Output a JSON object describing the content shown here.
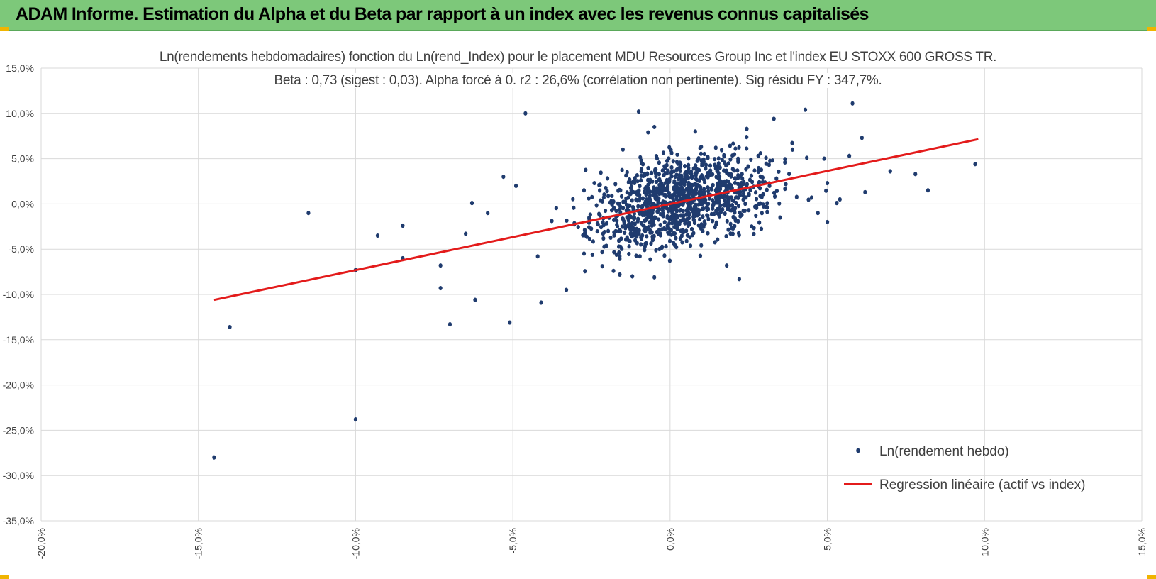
{
  "header": {
    "title": "ADAM Informe. Estimation du Alpha et du Beta par rapport à un index avec les revenus connus capitalisés"
  },
  "colors": {
    "banner": "#7dc87a",
    "points": "#1f3b6e",
    "regression": "#e31b1b",
    "grid": "#d9d9d9",
    "axis_text": "#404040"
  },
  "chart_data": {
    "type": "scatter",
    "title": "Ln(rendements hebdomadaires) fonction du Ln(rend_Index) pour le placement MDU Resources Group Inc et l'index EU STOXX 600 GROSS TR.",
    "subtitle": "Beta : 0,73 (sigest : 0,03). Alpha forcé à 0. r2 : 26,6% (corrélation non pertinente). Sig résidu FY : 347,7%.",
    "xlim": [
      -20,
      15
    ],
    "ylim": [
      -35,
      15
    ],
    "x_ticks": [
      -20,
      -15,
      -10,
      -5,
      0,
      5,
      10,
      15
    ],
    "y_ticks": [
      15,
      10,
      5,
      0,
      -5,
      -10,
      -15,
      -20,
      -25,
      -30,
      -35
    ],
    "x_tick_labels": [
      "-20,0%",
      "-15,0%",
      "-10,0%",
      "-5,0%",
      "0,0%",
      "5,0%",
      "10,0%",
      "15,0%"
    ],
    "y_tick_labels": [
      "15,0%",
      "10,0%",
      "5,0%",
      "0,0%",
      "-5,0%",
      "-10,0%",
      "-15,0%",
      "-20,0%",
      "-25,0%",
      "-30,0%",
      "-35,0%"
    ],
    "grid": true,
    "legend_position": "bottom-right",
    "series": [
      {
        "name": "Ln(rendement hebdo)",
        "kind": "scatter",
        "outliers": [
          [
            -14.5,
            -28.0
          ],
          [
            -14.0,
            -13.6
          ],
          [
            -11.5,
            -1.0
          ],
          [
            -10.0,
            -23.8
          ],
          [
            -10.0,
            -7.3
          ],
          [
            -9.3,
            -3.5
          ],
          [
            -8.5,
            -2.4
          ],
          [
            -8.5,
            -6.0
          ],
          [
            -7.3,
            -6.8
          ],
          [
            -7.3,
            -9.3
          ],
          [
            -7.0,
            -13.3
          ],
          [
            -6.5,
            -3.3
          ],
          [
            -6.3,
            0.1
          ],
          [
            -6.2,
            -10.6
          ],
          [
            -5.8,
            -1.0
          ],
          [
            -5.3,
            3.0
          ],
          [
            -5.1,
            -13.1
          ],
          [
            -4.9,
            2.0
          ],
          [
            -4.6,
            10.0
          ],
          [
            -4.1,
            -10.9
          ],
          [
            -3.3,
            -9.5
          ],
          [
            -1.8,
            -7.4
          ],
          [
            -1.6,
            -7.8
          ],
          [
            -1.2,
            -8.0
          ],
          [
            -0.5,
            -8.1
          ],
          [
            -1.0,
            10.2
          ],
          [
            -0.5,
            8.5
          ],
          [
            -0.7,
            7.9
          ],
          [
            -1.5,
            6.0
          ],
          [
            0.8,
            8.0
          ],
          [
            1.8,
            -6.8
          ],
          [
            2.2,
            -8.3
          ],
          [
            3.3,
            9.4
          ],
          [
            4.3,
            10.4
          ],
          [
            5.8,
            11.1
          ],
          [
            6.1,
            7.3
          ],
          [
            6.2,
            1.3
          ],
          [
            7.0,
            3.6
          ],
          [
            7.8,
            3.3
          ],
          [
            8.2,
            1.5
          ],
          [
            9.7,
            4.4
          ],
          [
            5.7,
            5.3
          ],
          [
            4.9,
            5.0
          ],
          [
            5.0,
            2.3
          ],
          [
            5.0,
            -2.0
          ],
          [
            4.7,
            -1.0
          ],
          [
            5.4,
            0.5
          ],
          [
            5.3,
            0.1
          ],
          [
            4.5,
            0.7
          ],
          [
            3.5,
            -1.5
          ]
        ],
        "cloud": {
          "n": 1150,
          "x_mean": 0.3,
          "x_sd": 1.35,
          "y_sd": 2.3,
          "slope": 0.73,
          "seed": 42
        }
      },
      {
        "name": "Regression linéaire (actif vs index)",
        "kind": "line",
        "x": [
          -14.5,
          9.8
        ],
        "y": [
          -10.6,
          7.15
        ]
      }
    ]
  }
}
